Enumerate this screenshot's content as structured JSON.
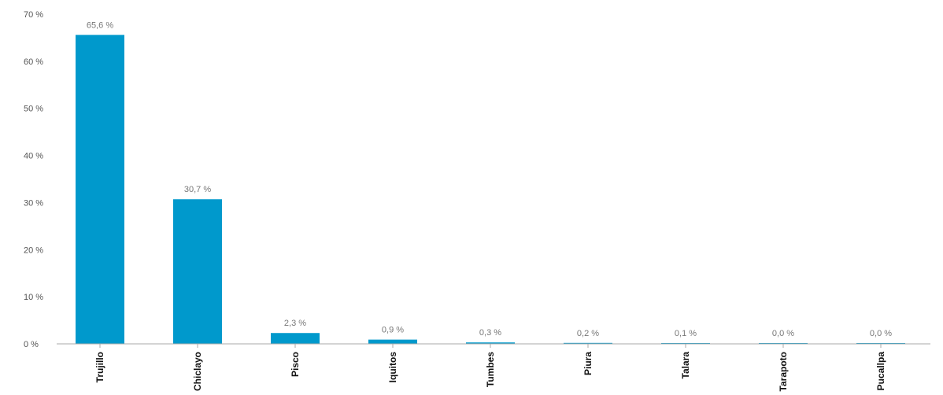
{
  "chart_data": {
    "type": "bar",
    "categories": [
      "Trujillo",
      "Chiclayo",
      "Pisco",
      "Iquitos",
      "Tumbes",
      "Piura",
      "Talara",
      "Tarapoto",
      "Pucallpa"
    ],
    "values": [
      65.6,
      30.7,
      2.3,
      0.9,
      0.3,
      0.2,
      0.1,
      0.0,
      0.0
    ],
    "value_labels": [
      "65,6 %",
      "30,7 %",
      "2,3 %",
      "0,9 %",
      "0,3 %",
      "0,2 %",
      "0,1 %",
      "0,0 %",
      "0,0 %"
    ],
    "yticks": [
      0,
      10,
      20,
      30,
      40,
      50,
      60,
      70
    ],
    "ytick_labels": [
      "0 %",
      "10 %",
      "20 %",
      "30 %",
      "40 %",
      "50 %",
      "60 %",
      "70 %"
    ],
    "ylim": [
      0,
      70
    ],
    "title": "",
    "xlabel": "",
    "ylabel": "",
    "grid": false,
    "bar_color": "#0099cc",
    "axis_color": "#aaaaaa"
  }
}
